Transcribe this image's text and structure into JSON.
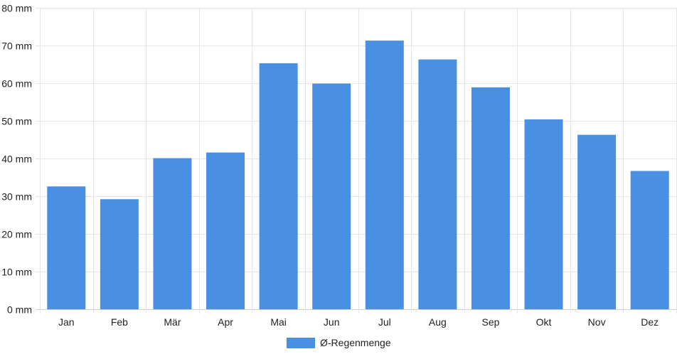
{
  "chart_data": {
    "type": "bar",
    "categories": [
      "Jan",
      "Feb",
      "Mär",
      "Apr",
      "Mai",
      "Jun",
      "Jul",
      "Aug",
      "Sep",
      "Okt",
      "Nov",
      "Dez"
    ],
    "series": [
      {
        "name": "Ø-Regenmenge",
        "color": "#4a90e2",
        "values": [
          32.6,
          29.2,
          40.1,
          41.6,
          65.3,
          59.9,
          71.3,
          66.3,
          58.9,
          50.4,
          46.3,
          36.7
        ]
      }
    ],
    "yticks": [
      "0 mm",
      "10 mm",
      "20 mm",
      "30 mm",
      "40 mm",
      "50 mm",
      "60 mm",
      "70 mm",
      "80 mm"
    ],
    "ylim": [
      0,
      80
    ],
    "ystep": 10,
    "grid": true,
    "legend_position": "bottom"
  }
}
